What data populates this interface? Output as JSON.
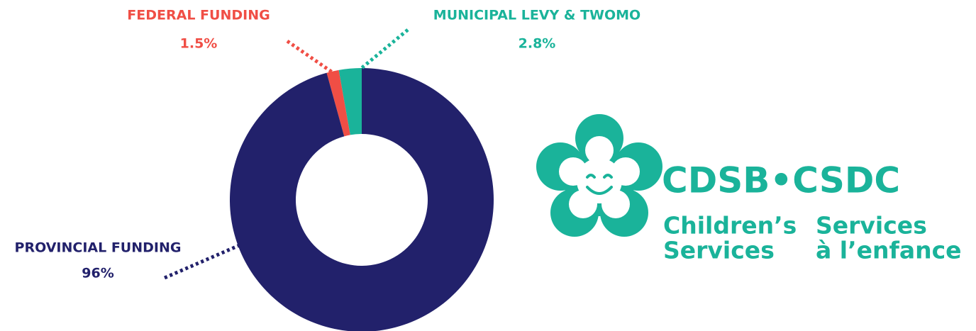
{
  "chart_data": {
    "type": "pie",
    "donut": true,
    "categories": [
      "PROVINCIAL FUNDING",
      "FEDERAL FUNDING",
      "MUNICIPAL LEVY & TWOMO"
    ],
    "values": [
      96,
      1.5,
      2.8
    ],
    "value_labels": [
      "96%",
      "1.5%",
      "2.8%"
    ],
    "colors": [
      "#22216b",
      "#f04e45",
      "#1ab39a"
    ]
  },
  "logo": {
    "name": "CDSB•CSDC",
    "lines": [
      "Children’s",
      "Services",
      "Services",
      "à l’enfance"
    ]
  }
}
